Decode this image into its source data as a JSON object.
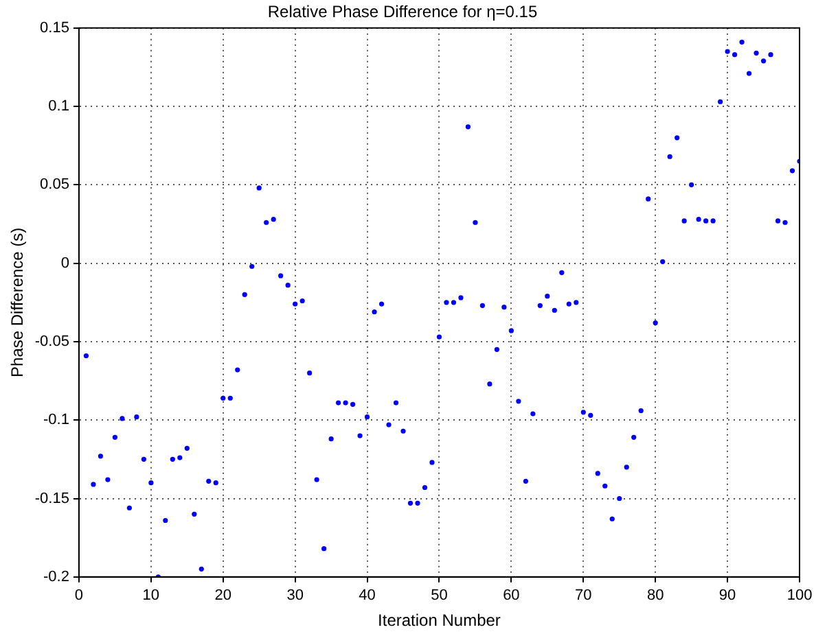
{
  "chart_data": {
    "type": "scatter",
    "title": "Relative Phase Difference for η=0.15",
    "xlabel": "Iteration Number",
    "ylabel": "Phase Difference (s)",
    "x": [
      1,
      2,
      3,
      4,
      5,
      6,
      7,
      8,
      9,
      10,
      11,
      12,
      13,
      14,
      15,
      16,
      17,
      18,
      19,
      20,
      21,
      22,
      23,
      24,
      25,
      26,
      27,
      28,
      29,
      30,
      31,
      32,
      33,
      34,
      35,
      36,
      37,
      38,
      39,
      40,
      41,
      42,
      43,
      44,
      45,
      46,
      47,
      48,
      49,
      50,
      51,
      52,
      53,
      54,
      55,
      56,
      57,
      58,
      59,
      60,
      61,
      62,
      63,
      64,
      65,
      66,
      67,
      68,
      69,
      70,
      71,
      72,
      73,
      74,
      75,
      76,
      77,
      78,
      79,
      80,
      81,
      82,
      83,
      84,
      85,
      86,
      87,
      88,
      89,
      90,
      91,
      92,
      93,
      94,
      95,
      96,
      97,
      98,
      99,
      100
    ],
    "series": [
      {
        "color": "#0000ff",
        "values": [
          -0.059,
          -0.141,
          -0.123,
          -0.138,
          -0.111,
          -0.099,
          -0.156,
          -0.098,
          -0.125,
          -0.14,
          -0.2,
          -0.164,
          -0.125,
          -0.124,
          -0.118,
          -0.16,
          -0.195,
          -0.139,
          -0.14,
          -0.086,
          -0.086,
          -0.068,
          -0.02,
          -0.002,
          0.048,
          0.026,
          0.028,
          -0.008,
          -0.014,
          -0.026,
          -0.024,
          -0.07,
          -0.138,
          -0.182,
          -0.112,
          -0.089,
          -0.089,
          -0.09,
          -0.11,
          -0.098,
          -0.031,
          -0.026,
          -0.103,
          -0.089,
          -0.107,
          -0.153,
          -0.153,
          -0.143,
          -0.127,
          -0.047,
          -0.025,
          -0.025,
          -0.022,
          0.087,
          0.026,
          -0.027,
          -0.077,
          -0.055,
          -0.028,
          -0.043,
          -0.088,
          -0.139,
          -0.096,
          -0.027,
          -0.021,
          -0.03,
          -0.006,
          -0.026,
          -0.025,
          -0.095,
          -0.097,
          -0.134,
          -0.142,
          -0.163,
          -0.15,
          -0.13,
          -0.111,
          -0.094,
          0.041,
          -0.038,
          0.001,
          0.068,
          0.08,
          0.027,
          0.05,
          0.028,
          0.027,
          0.027,
          0.103,
          0.135,
          0.133,
          0.141,
          0.121,
          0.134,
          0.129,
          0.133,
          0.027,
          0.026,
          0.059,
          0.065
        ]
      }
    ],
    "xlim": [
      0,
      100
    ],
    "xticks": [
      0,
      10,
      20,
      30,
      40,
      50,
      60,
      70,
      80,
      90,
      100
    ],
    "ylim": [
      -0.2,
      0.15
    ],
    "yticks": [
      -0.2,
      -0.15,
      -0.1,
      -0.05,
      0,
      0.05,
      0.1,
      0.15
    ],
    "grid": true,
    "marker": "circle",
    "legend": false
  }
}
